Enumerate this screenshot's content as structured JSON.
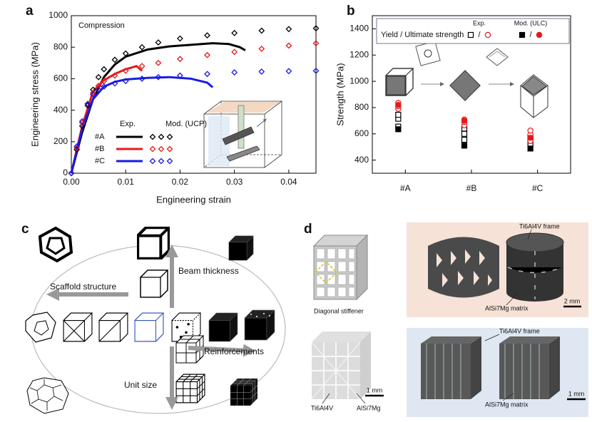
{
  "panel_labels": [
    "a",
    "b",
    "c",
    "d"
  ],
  "chart_data": [
    {
      "type": "line",
      "annotation": "Compression",
      "xlabel": "Engineering strain",
      "ylabel": "Engineering stress (MPa)",
      "xlim": [
        0,
        0.045
      ],
      "xticks": [
        {
          "value": 0,
          "label": "0.00"
        },
        {
          "value": 0.01,
          "label": "0.01"
        },
        {
          "value": 0.02,
          "label": "0.02"
        },
        {
          "value": 0.03,
          "label": "0.03"
        },
        {
          "value": 0.04,
          "label": "0.04"
        }
      ],
      "ylim": [
        0,
        1000
      ],
      "yticks": [
        0,
        200,
        400,
        600,
        800,
        1000
      ],
      "legend": {
        "headers": [
          "Exp.",
          "Mod. (UCP)"
        ]
      },
      "series": [
        {
          "name": "#A",
          "style": "line",
          "color": "#000000",
          "x": [
            0,
            0.002,
            0.004,
            0.006,
            0.008,
            0.01,
            0.014,
            0.018,
            0.022,
            0.026,
            0.029,
            0.031,
            0.032
          ],
          "values": [
            0,
            260,
            470,
            610,
            690,
            740,
            785,
            805,
            815,
            825,
            820,
            800,
            780
          ]
        },
        {
          "name": "#B",
          "style": "line",
          "color": "#e8191b",
          "x": [
            0,
            0.002,
            0.004,
            0.006,
            0.008,
            0.01,
            0.012,
            0.013
          ],
          "values": [
            0,
            300,
            520,
            590,
            630,
            660,
            680,
            650
          ]
        },
        {
          "name": "#C",
          "style": "line",
          "color": "#1a1ae6",
          "x": [
            0,
            0.002,
            0.004,
            0.006,
            0.008,
            0.01,
            0.014,
            0.018,
            0.022,
            0.025,
            0.026
          ],
          "values": [
            0,
            280,
            470,
            550,
            580,
            595,
            605,
            610,
            600,
            575,
            545
          ]
        },
        {
          "style": "markers",
          "color": "#000000",
          "x": [
            0,
            0.001,
            0.002,
            0.003,
            0.004,
            0.005,
            0.006,
            0.008,
            0.01,
            0.013,
            0.016,
            0.02,
            0.025,
            0.03,
            0.035,
            0.04,
            0.045
          ],
          "values": [
            0,
            150,
            300,
            430,
            530,
            610,
            660,
            720,
            760,
            800,
            830,
            855,
            875,
            890,
            905,
            915,
            920
          ]
        },
        {
          "style": "markers",
          "color": "#e8191b",
          "x": [
            0,
            0.001,
            0.002,
            0.003,
            0.004,
            0.005,
            0.006,
            0.008,
            0.01,
            0.013,
            0.016,
            0.02,
            0.025,
            0.03,
            0.035,
            0.04,
            0.045
          ],
          "values": [
            0,
            160,
            320,
            440,
            510,
            555,
            585,
            620,
            650,
            680,
            700,
            725,
            750,
            770,
            790,
            810,
            825
          ]
        },
        {
          "style": "markers",
          "color": "#1a1ae6",
          "x": [
            0,
            0.001,
            0.002,
            0.003,
            0.004,
            0.005,
            0.006,
            0.008,
            0.01,
            0.013,
            0.016,
            0.02,
            0.025,
            0.03,
            0.035,
            0.04,
            0.045
          ],
          "values": [
            0,
            170,
            330,
            440,
            500,
            530,
            550,
            570,
            585,
            600,
            610,
            620,
            630,
            640,
            645,
            648,
            650
          ]
        }
      ]
    },
    {
      "type": "strip",
      "ylabel": "Strength (MPa)",
      "categories": [
        "#A",
        "#B",
        "#C"
      ],
      "ylim": [
        300,
        1500
      ],
      "yticks": [
        400,
        600,
        800,
        1000,
        1200,
        1400
      ],
      "legend": {
        "title": "Yield / Ultimate strength",
        "groups": [
          "Exp.",
          "Mod. (ULC)"
        ],
        "separator": "/"
      },
      "series": [
        {
          "marker": "square",
          "filled": false,
          "color": "#000000",
          "values": [
            [
              655,
              715,
              745
            ],
            [
              555,
              600,
              640
            ],
            [
              520,
              555,
              575
            ]
          ]
        },
        {
          "marker": "circle",
          "filled": false,
          "color": "#e8191b",
          "values": [
            [
              790,
              810,
              835
            ],
            [
              665,
              690,
              708
            ],
            [
              545,
              595,
              625
            ]
          ]
        },
        {
          "marker": "square",
          "filled": true,
          "color": "#000000",
          "values": [
            [
              635
            ],
            [
              510
            ],
            [
              488
            ]
          ]
        },
        {
          "marker": "circle",
          "filled": true,
          "color": "#e8191b",
          "values": [
            [
              820
            ],
            [
              700
            ],
            [
              570
            ]
          ]
        }
      ]
    }
  ],
  "diagram": {
    "labels": [
      "Scaffold structure",
      "Beam thickness",
      "Unit size",
      "Reinforcements"
    ]
  },
  "photos": {
    "stiffener": "Diagonal stiffener",
    "top_frame": "Ti6Al4V frame",
    "top_matrix": "AlSi7Mg matrix",
    "top_scale": "2 mm",
    "cube_frame": "Ti6Al4V",
    "cube_matrix": "AlSi7Mg",
    "cube_scale": "1 mm",
    "bottom_frame": "Ti6Al4V frame",
    "bottom_matrix": "AlSi7Mg matrix",
    "bottom_scale": "1 mm"
  }
}
